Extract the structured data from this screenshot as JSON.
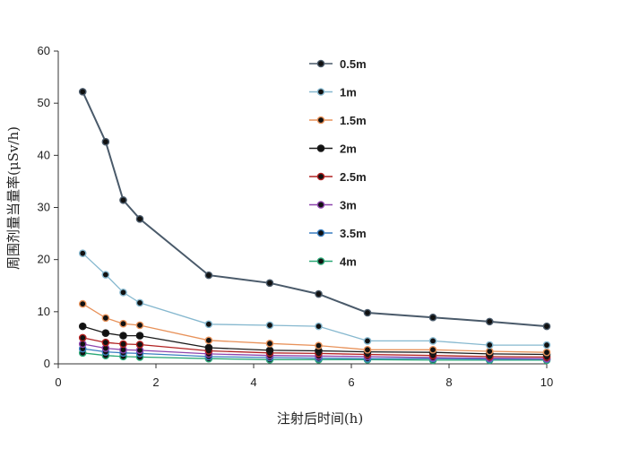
{
  "chart_data": {
    "type": "line",
    "title": "",
    "xlabel": "注射后时间(h)",
    "ylabel": "周围剂量当量率(μSv/h)",
    "xlim": [
      0,
      10
    ],
    "ylim": [
      0,
      60
    ],
    "xticks": [
      "0",
      "2",
      "4",
      "6",
      "8",
      "10"
    ],
    "yticks": [
      "0",
      "10",
      "20",
      "30",
      "40",
      "50",
      "60"
    ],
    "grid": false,
    "legend_position": "top-center",
    "x": [
      0.5,
      0.97,
      1.33,
      1.67,
      3.08,
      4.33,
      5.33,
      6.33,
      7.67,
      8.83,
      10.0
    ],
    "series": [
      {
        "name": "0.5m",
        "color": "#4a5a6a",
        "values": [
          52.2,
          42.6,
          31.4,
          27.8,
          17.0,
          15.5,
          13.4,
          9.8,
          8.9,
          8.1,
          7.2
        ]
      },
      {
        "name": "1m",
        "color": "#86b8cf",
        "values": [
          21.2,
          17.1,
          13.7,
          11.7,
          7.6,
          7.4,
          7.2,
          4.4,
          4.4,
          3.6,
          3.6
        ]
      },
      {
        "name": "1.5m",
        "color": "#e8925a",
        "values": [
          11.5,
          8.8,
          7.7,
          7.4,
          4.5,
          3.9,
          3.5,
          2.7,
          2.7,
          2.4,
          2.2
        ]
      },
      {
        "name": "2m",
        "color": "#1a1a1a",
        "values": [
          7.2,
          5.9,
          5.4,
          5.4,
          3.1,
          2.6,
          2.5,
          2.3,
          2.2,
          1.9,
          1.8
        ]
      },
      {
        "name": "2.5m",
        "color": "#b22222",
        "values": [
          5.0,
          4.1,
          3.8,
          3.7,
          2.5,
          2.1,
          2.0,
          1.8,
          1.6,
          1.4,
          1.3
        ]
      },
      {
        "name": "3m",
        "color": "#8e44ad",
        "values": [
          3.8,
          3.0,
          2.7,
          2.6,
          1.9,
          1.6,
          1.5,
          1.4,
          1.2,
          1.1,
          1.0
        ]
      },
      {
        "name": "3.5m",
        "color": "#3a7fc1",
        "values": [
          2.9,
          2.3,
          2.1,
          2.0,
          1.4,
          1.2,
          1.1,
          1.0,
          1.0,
          0.9,
          0.9
        ]
      },
      {
        "name": "4m",
        "color": "#2aa876",
        "values": [
          2.1,
          1.6,
          1.4,
          1.3,
          1.0,
          0.8,
          0.8,
          0.8,
          0.7,
          0.7,
          0.7
        ]
      }
    ]
  }
}
